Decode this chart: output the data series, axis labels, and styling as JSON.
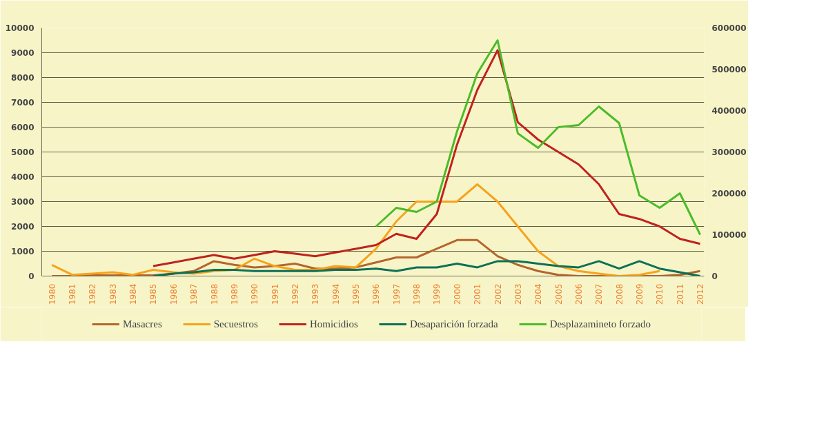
{
  "chart_data": {
    "type": "line",
    "x": [
      1980,
      1981,
      1982,
      1983,
      1984,
      1985,
      1986,
      1987,
      1988,
      1989,
      1990,
      1991,
      1992,
      1993,
      1994,
      1995,
      1996,
      1997,
      1998,
      1999,
      2000,
      2001,
      2002,
      2003,
      2004,
      2005,
      2006,
      2007,
      2008,
      2009,
      2010,
      2011,
      2012
    ],
    "xlim": [
      1979.5,
      2012.2
    ],
    "xticks": [
      1980,
      1981,
      1982,
      1983,
      1984,
      1985,
      1986,
      1987,
      1988,
      1989,
      1990,
      1991,
      1992,
      1993,
      1994,
      1995,
      1996,
      1997,
      1998,
      1999,
      2000,
      2001,
      2002,
      2003,
      2004,
      2005,
      2006,
      2007,
      2008,
      2009,
      2010,
      2011,
      2012
    ],
    "ylim": [
      0,
      10000
    ],
    "yticks": [
      0,
      1000,
      2000,
      3000,
      4000,
      5000,
      6000,
      7000,
      8000,
      9000,
      10000
    ],
    "y2lim": [
      0,
      600000
    ],
    "y2ticks": [
      0,
      100000,
      200000,
      300000,
      400000,
      500000,
      600000
    ],
    "grid": "y",
    "legend": "bottom",
    "line_style": "solid",
    "marker": "none",
    "series": [
      {
        "name": "Masacres",
        "color": "#b5652c",
        "values": [
          0,
          0,
          30,
          30,
          30,
          30,
          100,
          200,
          600,
          450,
          350,
          400,
          500,
          300,
          300,
          350,
          550,
          750,
          750,
          1100,
          1450,
          1450,
          800,
          450,
          200,
          50,
          0,
          0,
          0,
          0,
          0,
          50,
          200
        ]
      },
      {
        "name": "Secuestros",
        "color": "#f7a21b",
        "values": [
          450,
          50,
          100,
          150,
          50,
          250,
          150,
          100,
          200,
          250,
          700,
          400,
          250,
          250,
          400,
          350,
          1100,
          2200,
          3000,
          3000,
          3000,
          3700,
          3000,
          2000,
          1000,
          400,
          200,
          100,
          0,
          50,
          200,
          null,
          null
        ]
      },
      {
        "name": "Homicidios",
        "color": "#c0221e",
        "values": [
          null,
          null,
          null,
          null,
          null,
          400,
          550,
          700,
          850,
          700,
          850,
          1000,
          900,
          800,
          950,
          1100,
          1250,
          1700,
          1500,
          2500,
          5300,
          7500,
          9100,
          6200,
          5500,
          5000,
          4500,
          3700,
          2500,
          2300,
          2000,
          1500,
          1300
        ]
      },
      {
        "name": "Desaparición forzada",
        "color": "#0d7055",
        "values": [
          null,
          null,
          null,
          null,
          null,
          0,
          100,
          150,
          250,
          250,
          200,
          200,
          200,
          200,
          250,
          250,
          300,
          200,
          350,
          350,
          500,
          350,
          600,
          600,
          500,
          400,
          350,
          600,
          300,
          600,
          300,
          150,
          0
        ]
      },
      {
        "name": "Desplazamineto forzado",
        "color": "#4cbb2a",
        "axis": "y2",
        "values": [
          null,
          null,
          null,
          null,
          null,
          null,
          null,
          null,
          null,
          null,
          null,
          null,
          null,
          null,
          null,
          null,
          120000,
          165000,
          155000,
          180000,
          350000,
          490000,
          570000,
          345000,
          310000,
          360000,
          365000,
          410000,
          370000,
          195000,
          165000,
          200000,
          100000
        ]
      }
    ]
  }
}
